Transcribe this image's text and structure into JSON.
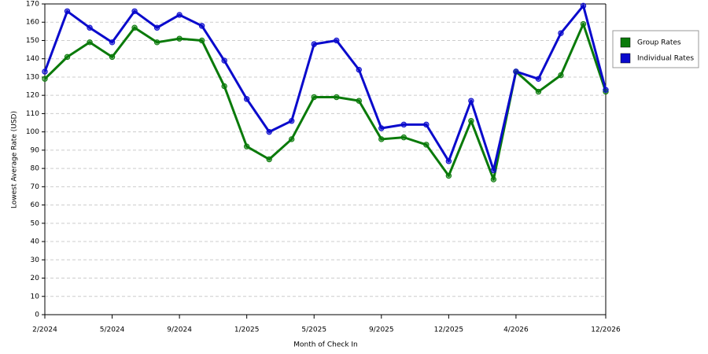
{
  "chart_data": {
    "type": "line",
    "x_label": "Month of Check In",
    "y_label": "Lowest Average Rate (USD)",
    "categories": [
      "2/2024",
      null,
      null,
      "5/2024",
      null,
      null,
      "9/2024",
      null,
      null,
      "1/2025",
      null,
      null,
      "5/2025",
      null,
      null,
      "9/2025",
      null,
      null,
      "12/2025",
      null,
      null,
      "4/2026",
      null,
      null,
      null,
      "12/2026"
    ],
    "series": [
      {
        "name": "Group Rates",
        "color": "#0a7a0a",
        "values": [
          129,
          141,
          149,
          141,
          157,
          149,
          151,
          150,
          125,
          92,
          85,
          96,
          119,
          119,
          117,
          96,
          97,
          93,
          76,
          106,
          74,
          133,
          122,
          131,
          159,
          122
        ]
      },
      {
        "name": "Individual Rates",
        "color": "#0a0acc",
        "values": [
          133,
          166,
          157,
          149,
          166,
          157,
          164,
          158,
          139,
          118,
          100,
          106,
          148,
          150,
          134,
          102,
          104,
          104,
          84,
          117,
          79,
          133,
          129,
          154,
          169,
          123
        ]
      }
    ],
    "ylim": [
      0,
      170
    ],
    "yticks": [
      0,
      10,
      20,
      30,
      40,
      50,
      60,
      70,
      80,
      90,
      100,
      110,
      120,
      130,
      140,
      150,
      160,
      170
    ],
    "grid": true,
    "legend": "right"
  }
}
